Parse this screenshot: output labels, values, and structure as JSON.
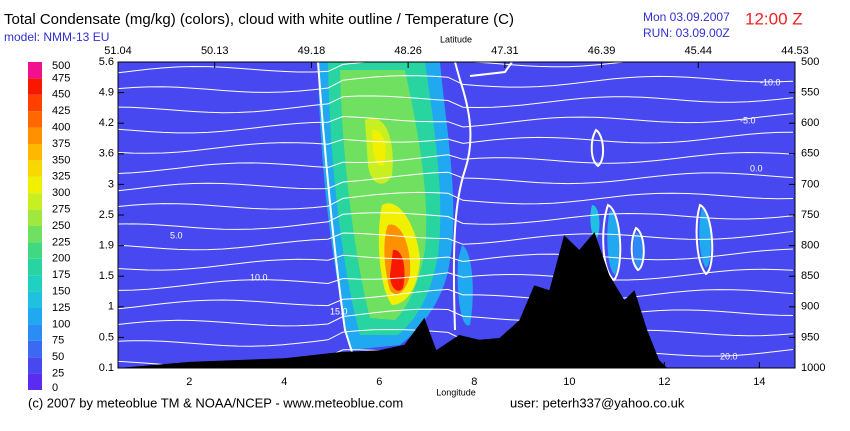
{
  "chart_data": {
    "type": "cross-section",
    "title": "Total Condensate (mg/kg) (colors), cloud with white outline / Temperature (C)",
    "model": "model: NMM-13 EU",
    "date": "Mon 03.09.2007",
    "time": "12:00 Z",
    "run": "RUN: 03.09.00Z",
    "x2_label": "Latitude",
    "x_label": "Longitude",
    "footer_left": "(c) 2007 by meteoblue TM & NOAA/NCEP - www.meteoblue.com",
    "footer_right": "user: peterh337@yahoo.co.uk",
    "xlim": [
      0.5,
      14.75
    ],
    "xticks": [
      2,
      4,
      6,
      8,
      10,
      12,
      14
    ],
    "latitude_ticks": [
      51.04,
      50.13,
      49.18,
      48.26,
      47.31,
      46.39,
      45.44,
      44.53
    ],
    "ylim": [
      1000,
      500
    ],
    "yticks": [
      500,
      550,
      600,
      650,
      700,
      750,
      800,
      850,
      900,
      950,
      1000
    ],
    "height_ticks": [
      5.6,
      4.9,
      4.2,
      3.6,
      3.0,
      2.5,
      1.9,
      1.5,
      1.0,
      0.5,
      0.1
    ],
    "colorbar": {
      "levels": [
        0,
        25,
        50,
        75,
        100,
        125,
        150,
        175,
        200,
        225,
        250,
        275,
        300,
        325,
        350,
        375,
        400,
        425,
        450,
        475,
        500
      ],
      "colors": [
        "#5a2cf0",
        "#4848f0",
        "#3a6af2",
        "#2a8cf4",
        "#20a8f0",
        "#20c0e0",
        "#20d0c0",
        "#28d4a0",
        "#40d880",
        "#70e060",
        "#a0e840",
        "#c8f020",
        "#f0f000",
        "#f8d800",
        "#ffb800",
        "#ff9000",
        "#ff6800",
        "#ff4000",
        "#f81800",
        "#f01090"
      ]
    },
    "isotherm_labels": [
      "-10.0",
      "-5.0",
      "0.0",
      "5.0",
      "10.0",
      "15.0",
      "20.0"
    ],
    "terrain": {
      "color": "#000000",
      "x": [
        0.5,
        2,
        4,
        5.16,
        6,
        6.53,
        6.95,
        7.2,
        7.68,
        8.1,
        8.53,
        8.95,
        9.26,
        9.58,
        9.89,
        10.21,
        10.53,
        10.84,
        11.16,
        11.37,
        11.64,
        11.89,
        12.06
      ],
      "values": [
        1000,
        990,
        984,
        974,
        971,
        962,
        918,
        971,
        946,
        954,
        951,
        922,
        865,
        873,
        783,
        807,
        778,
        848,
        889,
        873,
        938,
        987,
        1000
      ]
    }
  }
}
